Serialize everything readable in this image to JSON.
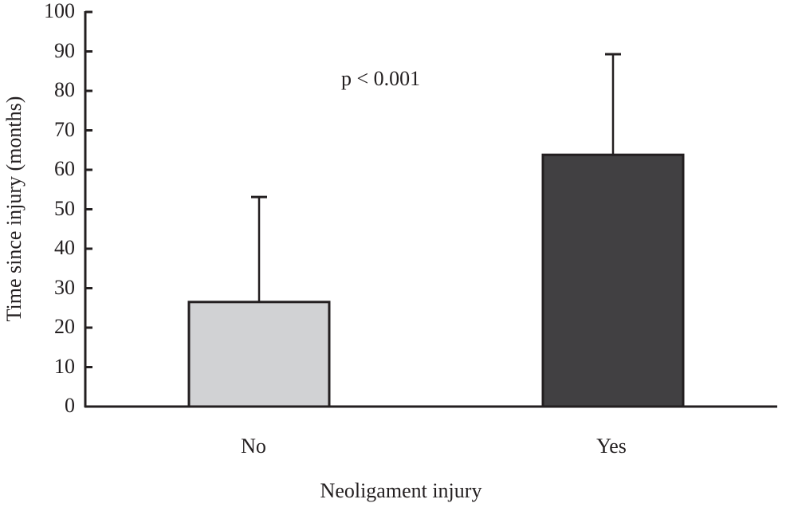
{
  "chart_data": {
    "type": "bar",
    "title": "",
    "xlabel": "Neoligament injury",
    "ylabel": "Time since injury (months)",
    "categories": [
      "No",
      "Yes"
    ],
    "values": [
      26.5,
      63.8
    ],
    "error_upper": [
      53.1,
      89.3
    ],
    "ylim": [
      0,
      100
    ],
    "yticks": [
      0,
      10,
      20,
      30,
      40,
      50,
      60,
      70,
      80,
      90,
      100
    ],
    "grid": false,
    "annotation": "p < 0.001",
    "bar_colors": [
      "#d1d2d4",
      "#414042"
    ]
  },
  "labels": {
    "annotation": "p < 0.001",
    "xlabel": "Neoligament injury",
    "ylabel": "Time since injury (months)",
    "cat0": "No",
    "cat1": "Yes",
    "yt": [
      "0",
      "10",
      "20",
      "30",
      "40",
      "50",
      "60",
      "70",
      "80",
      "90",
      "100"
    ]
  }
}
